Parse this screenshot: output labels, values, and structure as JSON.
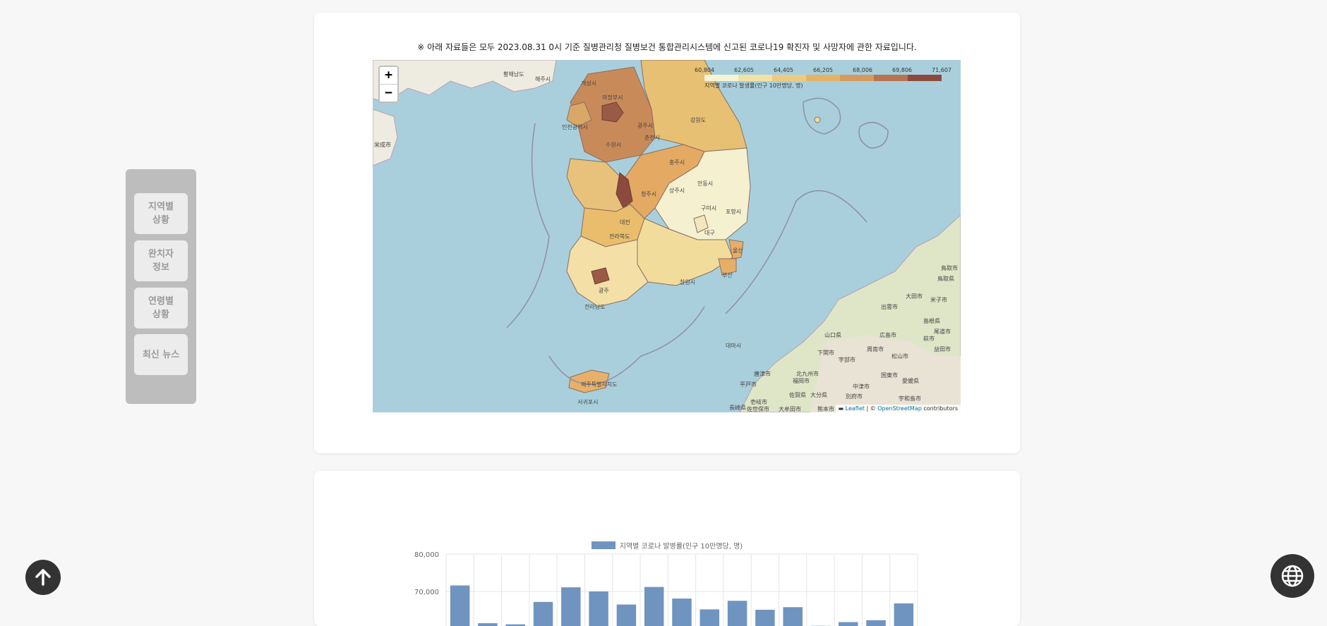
{
  "notice": "※ 아래 자료들은 모두 2023.08.31 0시 기준 질병관리청 질병보건 통합관리시스템에 신고된 코로나19 확진자 및 사망자에 관한 자료입니다.",
  "map": {
    "zoom_in_label": "+",
    "zoom_out_label": "−",
    "legend": {
      "ticks": [
        "60,804",
        "62,605",
        "64,405",
        "66,205",
        "68,006",
        "69,806",
        "71,607"
      ],
      "colors": [
        "#f7f3d6",
        "#f2e2a6",
        "#eccb80",
        "#e3b466",
        "#d59a5c",
        "#b87352",
        "#8b4a3d"
      ],
      "caption": "지역별 코로나 발생률(인구 10만명당, 명)"
    },
    "attribution": {
      "leaflet": "Leaflet",
      "separator": " | © ",
      "osm": "OpenStreetMap",
      "suffix": " contributors"
    },
    "labels": [
      "황해남도",
      "해주시",
      "개성시",
      "의정부시",
      "인천광역시",
      "광주시",
      "수원시",
      "춘천시",
      "강원도",
      "충주시",
      "청주시",
      "상주시",
      "안동시",
      "구미시",
      "포항시",
      "대전",
      "대구",
      "전라북도",
      "울산",
      "부산",
      "창원시",
      "광주",
      "전라남도",
      "제주특별자치도",
      "서귀포시",
      "대마시",
      "福岡市",
      "佐賀県",
      "長崎県",
      "山口県",
      "広島市",
      "松山市",
      "島根県",
      "大田市",
      "出雲市",
      "鳥取県",
      "米子市",
      "益田市",
      "萩市",
      "下関市",
      "北九州市",
      "大分県",
      "熊本市",
      "宇部市",
      "周南市",
      "国東市",
      "中津市",
      "別府市",
      "愛媛県",
      "宇和島市",
      "尾道市",
      "佐世保市",
      "大牟田市",
      "唐津市",
      "平戸市",
      "壱岐市",
      "鳥取市",
      "栄成市"
    ]
  },
  "sidebar": {
    "items": [
      {
        "label": "지역별\n상황"
      },
      {
        "label": "완치자\n정보"
      },
      {
        "label": "연령별\n상황"
      },
      {
        "label": "최신 뉴스"
      }
    ]
  },
  "chart_data": {
    "type": "bar",
    "title": "",
    "series": [
      {
        "name": "지역별 코로나 발병률(인구 10만명당, 명)",
        "values": [
          71607,
          61500,
          61200,
          67200,
          71100,
          70000,
          66500,
          71200,
          68100,
          65200,
          67500,
          65100,
          65800,
          60804,
          61800,
          62300,
          66800
        ]
      }
    ],
    "yticks": [
      "80,000",
      "70,000"
    ],
    "ylim": [
      60000,
      80000
    ],
    "color": "#7094c0"
  }
}
